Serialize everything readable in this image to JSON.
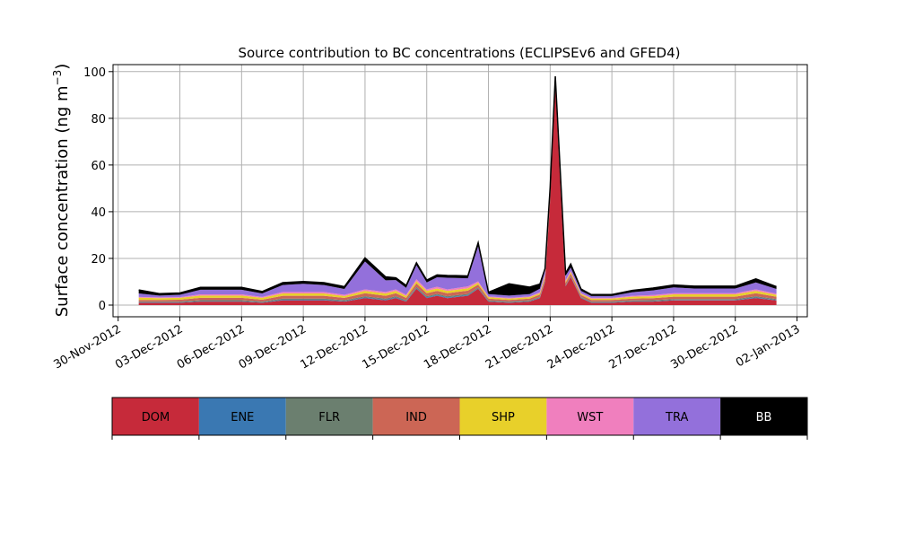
{
  "chart_data": {
    "type": "area",
    "title": "Source contribution to BC concentrations (ECLIPSEv6 and GFED4)",
    "ylabel_main": "Surface concentration (ng m",
    "ylabel_exp": "−3",
    "ylabel_close": ")",
    "xlabel": "",
    "ylim": [
      -5,
      103
    ],
    "xlim": [
      "2012-11-29T18:00",
      "2013-01-02T12:00"
    ],
    "grid": true,
    "x_ticks": [
      "30-Nov-2012",
      "03-Dec-2012",
      "06-Dec-2012",
      "09-Dec-2012",
      "12-Dec-2012",
      "15-Dec-2012",
      "18-Dec-2012",
      "21-Dec-2012",
      "24-Dec-2012",
      "27-Dec-2012",
      "30-Dec-2012",
      "02-Jan-2013"
    ],
    "y_ticks": [
      0,
      20,
      40,
      60,
      80,
      100
    ],
    "x": [
      "2012-12-01",
      "2012-12-02",
      "2012-12-03",
      "2012-12-04",
      "2012-12-05",
      "2012-12-06",
      "2012-12-07",
      "2012-12-08",
      "2012-12-09",
      "2012-12-10",
      "2012-12-11",
      "2012-12-12",
      "2012-12-13",
      "2012-12-13T12:00",
      "2012-12-14",
      "2012-12-14T12:00",
      "2012-12-15",
      "2012-12-15T12:00",
      "2012-12-16",
      "2012-12-17",
      "2012-12-17T12:00",
      "2012-12-18",
      "2012-12-19",
      "2012-12-20",
      "2012-12-20T12:00",
      "2012-12-20T18:00",
      "2012-12-21",
      "2012-12-21T06:00",
      "2012-12-21T18:00",
      "2012-12-22",
      "2012-12-22T12:00",
      "2012-12-23",
      "2012-12-24",
      "2012-12-25",
      "2012-12-26",
      "2012-12-27",
      "2012-12-28",
      "2012-12-29",
      "2012-12-30",
      "2012-12-31",
      "2013-01-01"
    ],
    "series": [
      {
        "name": "DOM",
        "color": "#c62a3a",
        "values": [
          1,
          1,
          1,
          1.5,
          1.5,
          1.5,
          1,
          2,
          2,
          2,
          1.5,
          3,
          2,
          3,
          1.5,
          7,
          3,
          4,
          3,
          4,
          7,
          1.5,
          1,
          1.5,
          3,
          10,
          45,
          94,
          8,
          12,
          3,
          1,
          1,
          1.5,
          1.5,
          2,
          2,
          2,
          2,
          3,
          2
        ]
      },
      {
        "name": "ENE",
        "color": "#3a78b2",
        "values": [
          0.2,
          0.2,
          0.2,
          0.2,
          0.2,
          0.2,
          0.2,
          0.3,
          0.3,
          0.3,
          0.2,
          0.3,
          0.3,
          0.3,
          0.2,
          0.3,
          0.3,
          0.3,
          0.3,
          0.3,
          0.2,
          0.2,
          0.2,
          0.2,
          0.2,
          0.3,
          0.2,
          0.2,
          0.2,
          0.2,
          0.2,
          0.2,
          0.2,
          0.2,
          0.2,
          0.2,
          0.2,
          0.2,
          0.2,
          0.3,
          0.2
        ]
      },
      {
        "name": "FLR",
        "color": "#6b7f6f",
        "values": [
          0.3,
          0.3,
          0.3,
          0.4,
          0.4,
          0.4,
          0.3,
          0.5,
          0.5,
          0.5,
          0.4,
          0.5,
          0.5,
          0.5,
          0.4,
          0.5,
          0.5,
          0.5,
          0.5,
          0.5,
          0.4,
          0.3,
          0.3,
          0.3,
          0.3,
          0.3,
          0.3,
          0.3,
          0.3,
          0.3,
          0.3,
          0.3,
          0.3,
          0.3,
          0.4,
          0.4,
          0.4,
          0.4,
          0.4,
          0.5,
          0.4
        ]
      },
      {
        "name": "IND",
        "color": "#cc6655",
        "values": [
          0.7,
          0.7,
          0.8,
          1,
          1,
          1,
          0.8,
          1.2,
          1.2,
          1.2,
          1,
          1.3,
          1.2,
          1.3,
          1,
          1.5,
          1.3,
          1.3,
          1.3,
          1.4,
          1.2,
          0.8,
          0.7,
          0.8,
          1,
          1.2,
          1.2,
          1.2,
          1,
          1,
          0.8,
          0.7,
          0.7,
          0.8,
          0.9,
          1,
          1,
          1,
          1,
          1.3,
          1
        ]
      },
      {
        "name": "SHP",
        "color": "#e8d02a",
        "values": [
          1,
          0.8,
          0.8,
          1,
          1,
          1,
          0.8,
          1,
          1,
          1,
          0.8,
          1,
          1,
          1,
          0.8,
          1,
          1,
          1,
          1,
          1,
          0.8,
          0.6,
          0.6,
          0.6,
          0.6,
          0.8,
          0.8,
          0.5,
          0.6,
          0.6,
          0.5,
          0.6,
          0.6,
          0.8,
          0.8,
          1,
          1,
          1,
          1,
          1,
          0.8
        ]
      },
      {
        "name": "WST",
        "color": "#f07fbe",
        "values": [
          0.3,
          0.3,
          0.3,
          0.5,
          0.5,
          0.5,
          0.4,
          0.6,
          0.6,
          0.6,
          0.5,
          0.6,
          0.6,
          0.6,
          0.5,
          0.8,
          0.6,
          0.8,
          0.6,
          0.8,
          0.6,
          0.3,
          0.3,
          0.3,
          0.4,
          0.5,
          0.5,
          0.3,
          0.5,
          0.5,
          0.3,
          0.3,
          0.3,
          0.4,
          0.5,
          0.5,
          0.5,
          0.5,
          0.5,
          0.6,
          0.5
        ]
      },
      {
        "name": "TRA",
        "color": "#9370db",
        "values": [
          1.5,
          0.8,
          1,
          2,
          2,
          2,
          1.5,
          3,
          3.5,
          3,
          2.5,
          12,
          5,
          4,
          3,
          6,
          3,
          4,
          5,
          3.5,
          15,
          1,
          1,
          1,
          1.5,
          2,
          2,
          1,
          2,
          1.5,
          1,
          0.8,
          0.8,
          1.5,
          2,
          2.5,
          2,
          2,
          2,
          3,
          2
        ]
      },
      {
        "name": "BB",
        "color": "#000000",
        "values": [
          1.5,
          0.8,
          0.8,
          1,
          1,
          1,
          0.8,
          1,
          1,
          1,
          1,
          1.5,
          1.5,
          1,
          1,
          1,
          1,
          1,
          1,
          1,
          1.5,
          0.8,
          5,
          3,
          2,
          0.5,
          0.5,
          0.5,
          1,
          1.5,
          0.8,
          0.6,
          0.6,
          0.8,
          1,
          1,
          1,
          1,
          1,
          1.5,
          1
        ]
      }
    ]
  }
}
